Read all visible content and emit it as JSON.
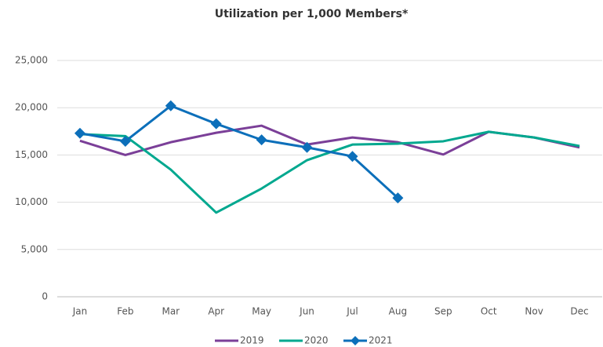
{
  "chart_data": {
    "type": "line",
    "title": "Utilization per 1,000 Members*",
    "categories": [
      "Jan",
      "Feb",
      "Mar",
      "Apr",
      "May",
      "Jun",
      "Jul",
      "Aug",
      "Sep",
      "Oct",
      "Nov",
      "Dec"
    ],
    "series": [
      {
        "name": "2019",
        "color": "#7b3f98",
        "marker": "none",
        "values": [
          16500,
          15000,
          16350,
          17350,
          18100,
          16100,
          16850,
          16350,
          15050,
          17450,
          16850,
          15800
        ]
      },
      {
        "name": "2020",
        "color": "#00a88f",
        "marker": "none",
        "values": [
          17200,
          17000,
          13450,
          8900,
          11450,
          14450,
          16100,
          16200,
          16450,
          17450,
          16850,
          15950
        ]
      },
      {
        "name": "2021",
        "color": "#0c6fba",
        "marker": "diamond",
        "values": [
          17300,
          16450,
          20200,
          18300,
          16600,
          15800,
          14850,
          10450,
          null,
          null,
          null,
          null
        ]
      }
    ],
    "ylim": [
      0,
      25000
    ],
    "yticks": [
      0,
      {
        "value": 5000,
        "label": "5,000"
      },
      {
        "value": 10000,
        "label": "10,000"
      },
      {
        "value": 15000,
        "label": "15,000"
      },
      {
        "value": 20000,
        "label": "20,000"
      },
      {
        "value": 25000,
        "label": "25,000"
      }
    ],
    "grid": true,
    "legend": "bottom"
  }
}
